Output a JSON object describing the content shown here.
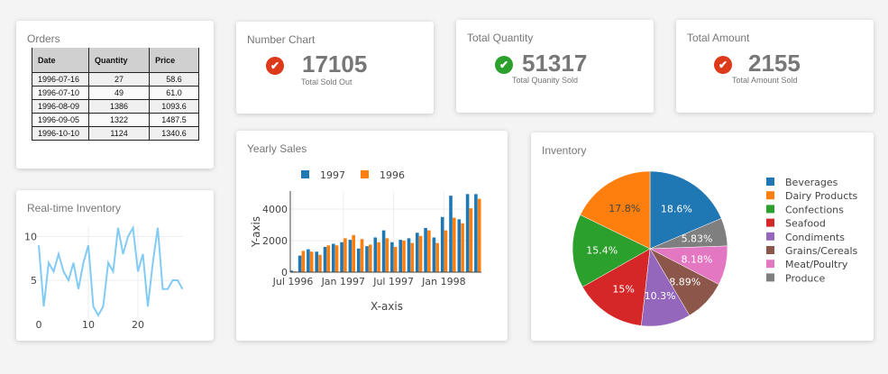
{
  "orders": {
    "title": "Orders",
    "columns": [
      "Date",
      "Quantity",
      "Price"
    ],
    "rows": [
      [
        "1996-07-16",
        "27",
        "58.6"
      ],
      [
        "1996-07-10",
        "49",
        "61.0"
      ],
      [
        "1996-08-09",
        "1386",
        "1093.6"
      ],
      [
        "1996-09-05",
        "1322",
        "1487.5"
      ],
      [
        "1996-10-10",
        "1124",
        "1340.6"
      ]
    ]
  },
  "kpis": [
    {
      "title": "Number Chart",
      "value": "17105",
      "subtitle": "Total Sold Out",
      "icon": "check-circle-icon",
      "color": "#dd3a1b"
    },
    {
      "title": "Total Quantity",
      "value": "51317",
      "subtitle": "Total Quanity Sold",
      "icon": "check-circle-icon",
      "color": "#2ca02c"
    },
    {
      "title": "Total Amount",
      "value": "2155",
      "subtitle": "Total Amount Sold",
      "icon": "check-circle-icon",
      "color": "#dd3a1b"
    }
  ],
  "chart_data": [
    {
      "type": "line",
      "title": "Real-time Inventory",
      "x": [
        0,
        1,
        2,
        3,
        4,
        5,
        6,
        7,
        8,
        9,
        10,
        11,
        12,
        13,
        14,
        15,
        16,
        17,
        18,
        19,
        20,
        21,
        22,
        23,
        24,
        25,
        26,
        27,
        28,
        29
      ],
      "y": [
        9,
        2,
        7,
        6,
        8,
        6,
        5,
        7,
        4,
        7,
        9,
        2,
        1,
        2,
        7,
        6,
        11,
        8,
        10,
        11,
        6,
        8,
        2,
        7,
        11,
        4,
        4,
        5,
        5,
        4
      ],
      "xticks": [
        "0",
        "10",
        "20"
      ],
      "yticks": [
        "5",
        "10"
      ],
      "color": "#82cbf5",
      "grid": true
    },
    {
      "type": "bar",
      "title": "Yearly Sales",
      "xlabel": "X-axis",
      "ylabel": "Y-axis",
      "xticks": [
        "Jul 1996",
        "Jan 1997",
        "Jul 1997",
        "Jan 1998"
      ],
      "yticks": [
        "0",
        "2000",
        "4000"
      ],
      "ylim": [
        0,
        5100
      ],
      "categories": [
        "1996-07",
        "1996-08",
        "1996-09",
        "1996-10",
        "1996-11",
        "1996-12",
        "1997-01",
        "1997-02",
        "1997-03",
        "1997-04",
        "1997-05",
        "1997-06",
        "1997-07",
        "1997-08",
        "1997-09",
        "1997-10",
        "1997-11",
        "1997-12",
        "1998-01",
        "1998-02",
        "1998-03",
        "1998-04",
        "1998-05"
      ],
      "series": [
        {
          "name": "1997",
          "color": "#1f77b4",
          "values": [
            100,
            1050,
            1450,
            1300,
            1600,
            1800,
            1900,
            2050,
            1500,
            1650,
            2200,
            2650,
            1900,
            2050,
            2150,
            2500,
            2800,
            2200,
            3500,
            4850,
            3350,
            4950,
            4950
          ]
        },
        {
          "name": "1996",
          "color": "#ff7f0e",
          "values": [
            50,
            1350,
            1300,
            1100,
            1700,
            1700,
            2150,
            2350,
            2100,
            1750,
            1900,
            2150,
            1600,
            2000,
            1850,
            2300,
            2650,
            1850,
            2650,
            3450,
            3100,
            4050,
            4650
          ]
        }
      ],
      "legend": "top"
    },
    {
      "type": "pie",
      "title": "Inventory",
      "legend": "right",
      "slices": [
        {
          "label": "Beverages",
          "value": 18.6,
          "text": "18.6%",
          "color": "#1f77b4"
        },
        {
          "label": "Produce",
          "value": 5.83,
          "text": "5.83%",
          "color": "#7f7f7f"
        },
        {
          "label": "Meat/Poultry",
          "value": 8.18,
          "text": "8.18%",
          "color": "#e377c2"
        },
        {
          "label": "Grains/Cereals",
          "value": 8.89,
          "text": "8.89%",
          "color": "#8c564b"
        },
        {
          "label": "Condiments",
          "value": 10.3,
          "text": "10.3%",
          "color": "#9467bd"
        },
        {
          "label": "Seafood",
          "value": 15,
          "text": "15%",
          "color": "#d62728"
        },
        {
          "label": "Confections",
          "value": 15.4,
          "text": "15.4%",
          "color": "#2ca02c"
        },
        {
          "label": "Dairy Products",
          "value": 17.8,
          "text": "17.8%",
          "color": "#ff7f0e"
        }
      ],
      "legend_order": [
        "Beverages",
        "Dairy Products",
        "Confections",
        "Seafood",
        "Condiments",
        "Grains/Cereals",
        "Meat/Poultry",
        "Produce"
      ]
    }
  ]
}
